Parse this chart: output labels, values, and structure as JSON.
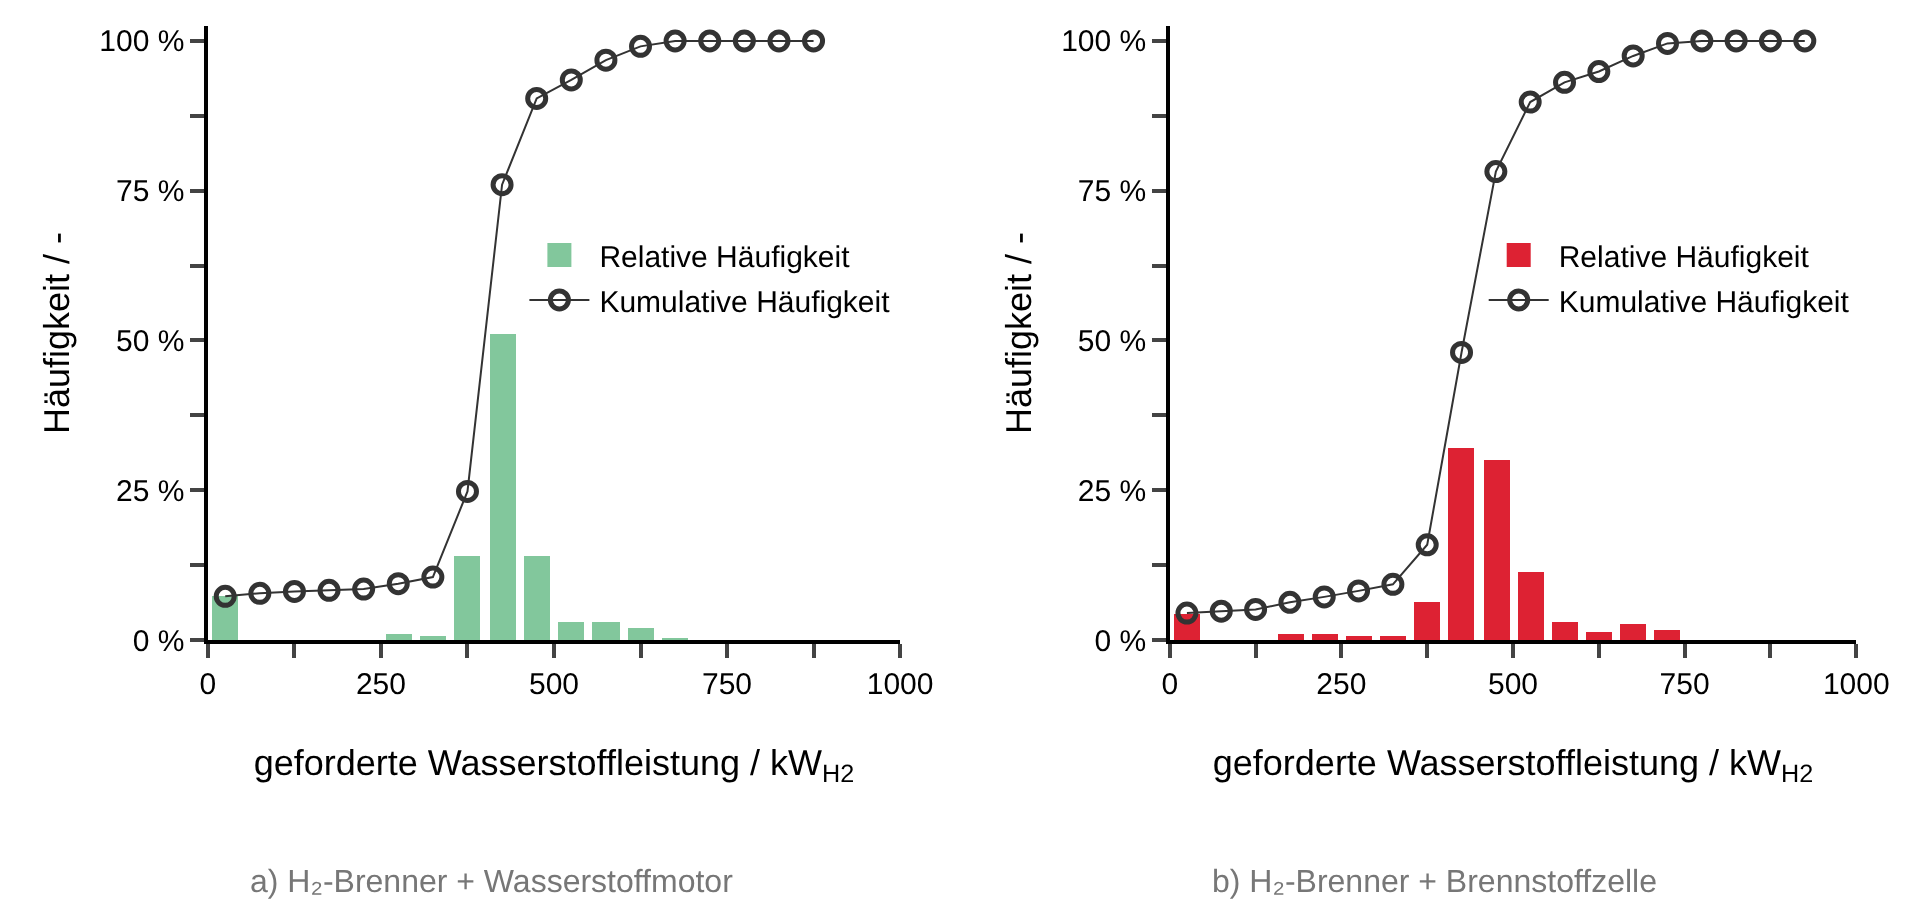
{
  "chart_data": [
    {
      "type": "bar",
      "xlabel": "geforderte Wasserstoffleistung / kW$_{H2}$",
      "ylabel": "Häufigkeit / -",
      "legend": "right",
      "annotations": [
        "a) H₂-Brenner + Wasserstoffmotor"
      ],
      "xlim": [
        0,
        1000
      ],
      "ylim": [
        0,
        102.5
      ],
      "xticks": [
        0,
        {
          "value": 125,
          "label": null
        },
        250,
        {
          "value": 375,
          "label": null
        },
        500,
        {
          "value": 625,
          "label": null
        },
        750,
        {
          "value": 875,
          "label": null
        },
        1000
      ],
      "yticks": [
        {
          "value": 0,
          "label": "0 %"
        },
        {
          "value": 12.5,
          "label": null
        },
        {
          "value": 25,
          "label": "25 %"
        },
        {
          "value": 37.5,
          "label": null
        },
        {
          "value": 50,
          "label": "50 %"
        },
        {
          "value": 62.5,
          "label": null
        },
        {
          "value": 75,
          "label": "75 %"
        },
        {
          "value": 87.5,
          "label": null
        },
        {
          "value": 100,
          "label": "100 %"
        }
      ],
      "series": [
        {
          "name": "Relative Häufigkeit",
          "color": "#82c79c",
          "x": [
            25,
            275,
            325,
            375,
            425,
            475,
            525,
            575,
            625,
            675
          ],
          "values": [
            7.3,
            0.9,
            0.7,
            14,
            51,
            14,
            2.9,
            2.9,
            2.1,
            0.3
          ]
        },
        {
          "name": "Kumulative Häufigkeit",
          "type": "line",
          "color": "#333333",
          "marker": "circle",
          "x": [
            25,
            75,
            125,
            175,
            225,
            275,
            325,
            375,
            425,
            475,
            525,
            575,
            625,
            675,
            725,
            775,
            825,
            875
          ],
          "values": [
            7.3,
            7.8,
            8.1,
            8.3,
            8.5,
            9.4,
            10.5,
            24.8,
            76,
            90.4,
            93.5,
            96.8,
            99.1,
            100,
            100,
            100,
            100,
            100
          ]
        }
      ]
    },
    {
      "type": "bar",
      "xlabel": "geforderte Wasserstoffleistung / kW$_{H2}$",
      "ylabel": "Häufigkeit / -",
      "legend": "right",
      "annotations": [
        "b) H₂-Brenner + Brennstoffzelle"
      ],
      "xlim": [
        0,
        1000
      ],
      "ylim": [
        0,
        102.5
      ],
      "xticks": [
        0,
        {
          "value": 125,
          "label": null
        },
        250,
        {
          "value": 375,
          "label": null
        },
        500,
        {
          "value": 625,
          "label": null
        },
        750,
        {
          "value": 875,
          "label": null
        },
        1000
      ],
      "yticks": [
        {
          "value": 0,
          "label": "0 %"
        },
        {
          "value": 12.5,
          "label": null
        },
        {
          "value": 25,
          "label": "25 %"
        },
        {
          "value": 37.5,
          "label": null
        },
        {
          "value": 50,
          "label": "50 %"
        },
        {
          "value": 62.5,
          "label": null
        },
        {
          "value": 75,
          "label": "75 %"
        },
        {
          "value": 87.5,
          "label": null
        },
        {
          "value": 100,
          "label": "100 %"
        }
      ],
      "series": [
        {
          "name": "Relative Häufigkeit",
          "color": "#dd2233",
          "x": [
            25,
            175,
            225,
            275,
            325,
            375,
            425,
            475,
            525,
            575,
            625,
            675,
            725
          ],
          "values": [
            4.3,
            1.0,
            1.0,
            0.7,
            0.4,
            6.5,
            32,
            29.9,
            11.3,
            3.0,
            1.5,
            2.6,
            1.7
          ]
        },
        {
          "name": "Kumulative Häufigkeit",
          "type": "line",
          "color": "#333333",
          "marker": "circle",
          "x": [
            25,
            75,
            125,
            175,
            225,
            275,
            325,
            375,
            425,
            475,
            525,
            575,
            625,
            675,
            725,
            775,
            825,
            875,
            925
          ],
          "values": [
            4.5,
            4.8,
            5.1,
            6.3,
            7.2,
            8.2,
            9.3,
            15.9,
            48,
            78.2,
            89.8,
            93.1,
            94.9,
            97.5,
            99.6,
            100,
            100,
            100,
            100
          ]
        }
      ]
    }
  ]
}
